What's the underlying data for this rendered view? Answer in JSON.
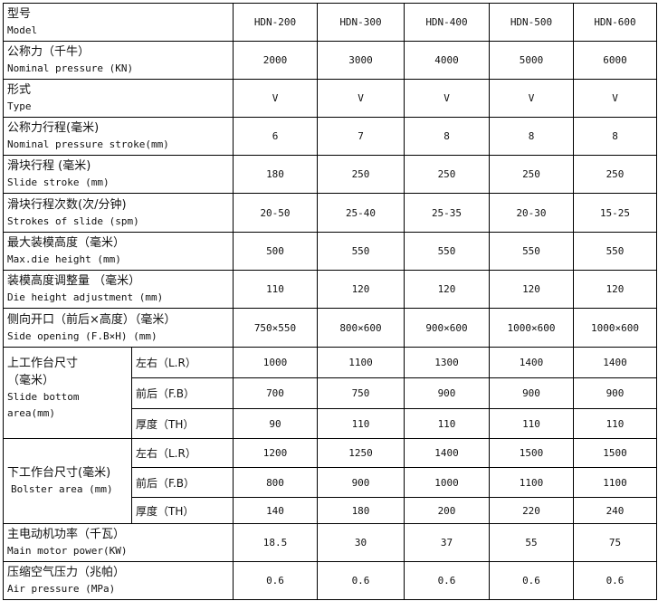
{
  "rows": [
    {
      "cn": "型号",
      "en": "Model",
      "values": [
        "HDN-200",
        "HDN-300",
        "HDN-400",
        "HDN-500",
        "HDN-600"
      ]
    },
    {
      "cn": "公称力（千牛）",
      "en": "Nominal pressure (KN)",
      "values": [
        "2000",
        "3000",
        "4000",
        "5000",
        "6000"
      ]
    },
    {
      "cn": "形式",
      "en": "Type",
      "values": [
        "V",
        "V",
        "V",
        "V",
        "V"
      ]
    },
    {
      "cn": "公称力行程(毫米)",
      "en": "Nominal pressure stroke(mm)",
      "values": [
        "6",
        "7",
        "8",
        "8",
        "8"
      ]
    },
    {
      "cn": "滑块行程 (毫米)",
      "en": "Slide stroke (mm)",
      "values": [
        "180",
        "250",
        "250",
        "250",
        "250"
      ]
    },
    {
      "cn": "滑块行程次数(次/分钟)",
      "en": "Strokes of slide (spm)",
      "values": [
        "20-50",
        "25-40",
        "25-35",
        "20-30",
        "15-25"
      ]
    },
    {
      "cn": "最大装模高度（毫米）",
      "en": "Max.die height (mm)",
      "values": [
        "500",
        "550",
        "550",
        "550",
        "550"
      ]
    },
    {
      "cn": "装模高度调整量 （毫米）",
      "en": "Die height adjustment (mm)",
      "values": [
        "110",
        "120",
        "120",
        "120",
        "120"
      ]
    },
    {
      "cn": "侧向开口（前后×高度）（毫米）",
      "en": "Side opening (F.B×H) (mm)",
      "values": [
        "750×550",
        "800×600",
        "900×600",
        "1000×600",
        "1000×600"
      ]
    }
  ],
  "slide_bottom": {
    "cn1": "上工作台尺寸",
    "cn2": "（毫米）",
    "en1": "Slide bottom",
    "en2": "area(mm)",
    "subs": [
      {
        "label": "左右（L.R）",
        "values": [
          "1000",
          "1100",
          "1300",
          "1400",
          "1400"
        ]
      },
      {
        "label": "前后（F.B）",
        "values": [
          "700",
          "750",
          "900",
          "900",
          "900"
        ]
      },
      {
        "label": "厚度（TH）",
        "values": [
          "90",
          "110",
          "110",
          "110",
          "110"
        ]
      }
    ]
  },
  "bolster": {
    "cn": "下工作台尺寸(毫米)",
    "en": "Bolster area (mm)",
    "subs": [
      {
        "label": "左右（L.R）",
        "values": [
          "1200",
          "1250",
          "1400",
          "1500",
          "1500"
        ]
      },
      {
        "label": "前后（F.B）",
        "values": [
          "800",
          "900",
          "1000",
          "1100",
          "1100"
        ]
      },
      {
        "label": "厚度（TH）",
        "values": [
          "140",
          "180",
          "200",
          "220",
          "240"
        ]
      }
    ]
  },
  "tail_rows": [
    {
      "cn": "主电动机功率（千瓦）",
      "en": "Main motor power(KW)",
      "values": [
        "18.5",
        "30",
        "37",
        "55",
        "75"
      ]
    },
    {
      "cn": "压缩空气压力（兆帕）",
      "en": "Air pressure (MPa)",
      "values": [
        "0.6",
        "0.6",
        "0.6",
        "0.6",
        "0.6"
      ]
    }
  ]
}
